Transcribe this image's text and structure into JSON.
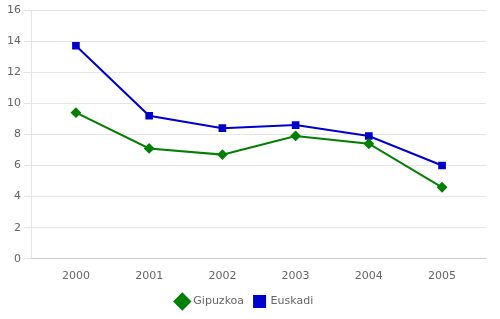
{
  "chart_data": {
    "type": "line",
    "x": [
      2000,
      2001,
      2002,
      2003,
      2004,
      2005
    ],
    "series": [
      {
        "name": "Gipuzkoa",
        "color": "#008000",
        "marker": "diamond",
        "values": [
          9.4,
          7.1,
          6.7,
          7.9,
          7.4,
          4.6
        ]
      },
      {
        "name": "Euskadi",
        "color": "#0000cc",
        "marker": "square",
        "values": [
          13.7,
          9.2,
          8.4,
          8.6,
          7.9,
          6.0
        ]
      }
    ],
    "xlim": [
      1999.4,
      2005.6
    ],
    "xticks": [
      2000,
      2001,
      2002,
      2003,
      2004,
      2005
    ],
    "ylim": [
      0,
      16
    ],
    "yticks": [
      0,
      2,
      4,
      6,
      8,
      10,
      12,
      14,
      16
    ],
    "grid": "y",
    "legend": "bottom"
  }
}
